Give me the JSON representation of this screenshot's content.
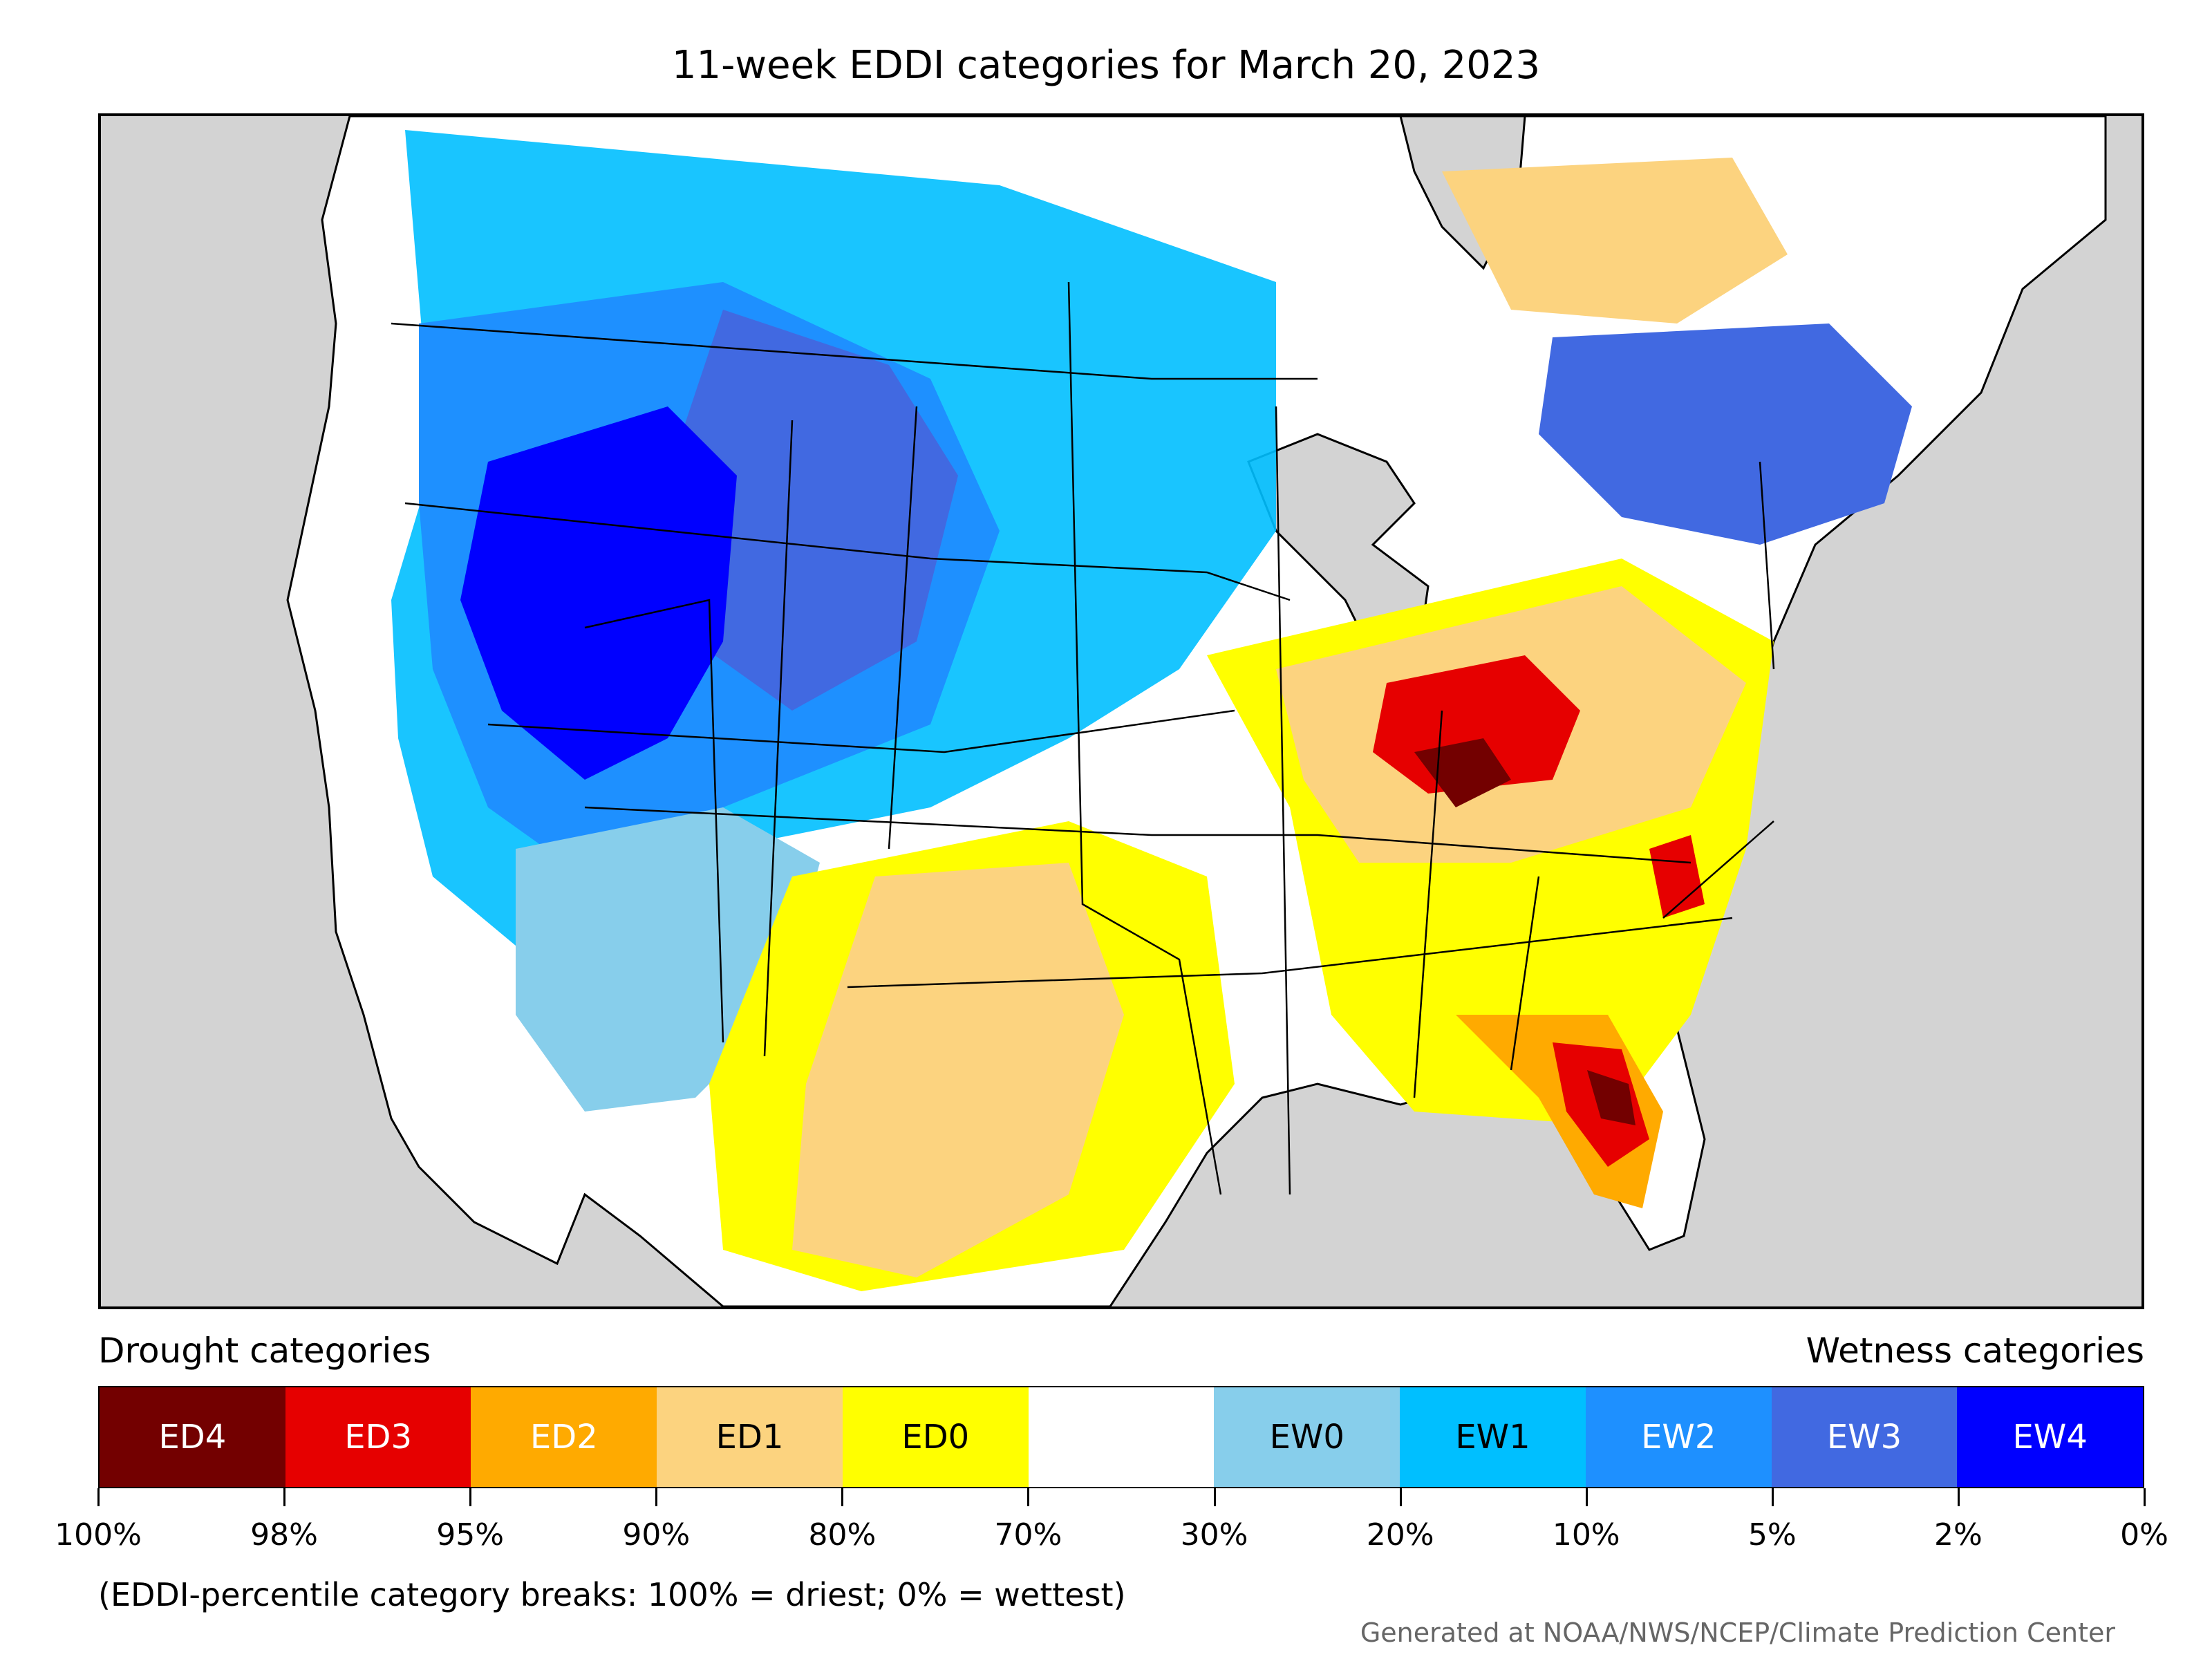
{
  "title": "11-week EDDI categories for March 20, 2023",
  "legend": {
    "drought_heading": "Drought categories",
    "wetness_heading": "Wetness categories",
    "categories": [
      {
        "label": "ED4",
        "color": "#730000",
        "text_color": "#ffffff"
      },
      {
        "label": "ED3",
        "color": "#e60000",
        "text_color": "#ffffff"
      },
      {
        "label": "ED2",
        "color": "#ffaa00",
        "text_color": "#ffffff"
      },
      {
        "label": "ED1",
        "color": "#fcd37f",
        "text_color": "#000000"
      },
      {
        "label": "ED0",
        "color": "#ffff00",
        "text_color": "#000000"
      },
      {
        "label": "",
        "color": "#ffffff",
        "text_color": "#000000"
      },
      {
        "label": "EW0",
        "color": "#87ceeb",
        "text_color": "#000000"
      },
      {
        "label": "EW1",
        "color": "#00bfff",
        "text_color": "#000000"
      },
      {
        "label": "EW2",
        "color": "#1e90ff",
        "text_color": "#ffffff"
      },
      {
        "label": "EW3",
        "color": "#4169e1",
        "text_color": "#ffffff"
      },
      {
        "label": "EW4",
        "color": "#0000ff",
        "text_color": "#ffffff"
      }
    ],
    "tick_labels": [
      "100%",
      "98%",
      "95%",
      "90%",
      "80%",
      "70%",
      "30%",
      "20%",
      "10%",
      "5%",
      "2%",
      "0%"
    ]
  },
  "note": "(EDDI-percentile category breaks: 100% = driest; 0% = wettest)",
  "credit": "Generated at NOAA/NWS/NCEP/Climate Prediction Center",
  "map": {
    "background_color": "#d3d3d3",
    "land_color": "#ffffff",
    "regions": [
      {
        "name": "pacific-northwest-interior",
        "category": "EW2"
      },
      {
        "name": "great-basin-idaho",
        "category": "EW4"
      },
      {
        "name": "montana-wyoming",
        "category": "EW3"
      },
      {
        "name": "northern-plains",
        "category": "EW1"
      },
      {
        "name": "southern-canada-prairies",
        "category": "EW1"
      },
      {
        "name": "arizona-new-mexico",
        "category": "EW0"
      },
      {
        "name": "texas-southern-plains",
        "category": "ED1"
      },
      {
        "name": "ohio-valley",
        "category": "ED3"
      },
      {
        "name": "kentucky-core",
        "category": "ED4"
      },
      {
        "name": "mid-atlantic",
        "category": "ED1"
      },
      {
        "name": "southeast",
        "category": "ED0"
      },
      {
        "name": "north-florida",
        "category": "ED4"
      },
      {
        "name": "eastern-north-carolina",
        "category": "ED3"
      },
      {
        "name": "quebec-ontario",
        "category": "ED1"
      },
      {
        "name": "new-england-quebec",
        "category": "EW3"
      }
    ]
  }
}
